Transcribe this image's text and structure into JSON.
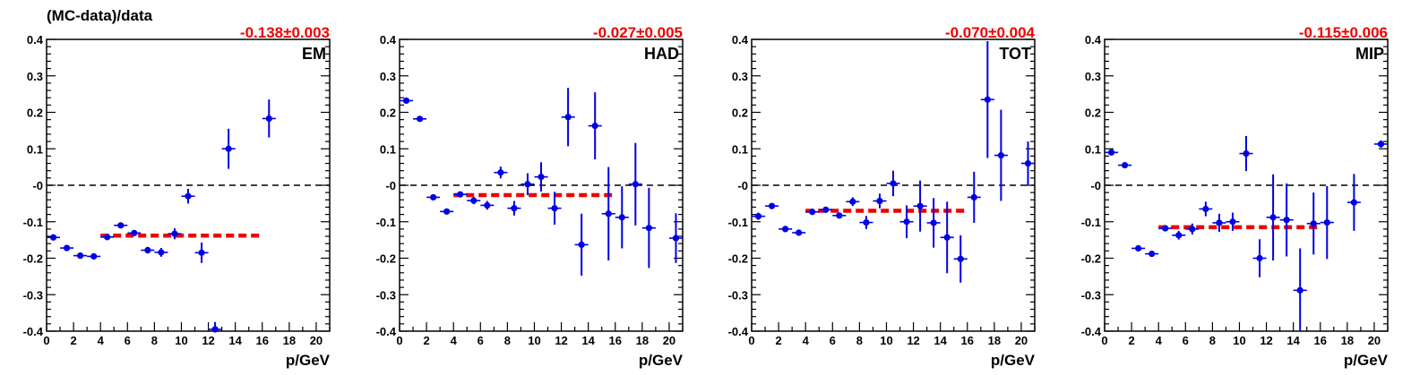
{
  "figure": {
    "ylabel": "(MC-data)/data"
  },
  "chart_data": [
    {
      "type": "scatter",
      "label": "EM",
      "fit_text": "-0.138±0.003",
      "fit_value": -0.138,
      "fit_range": [
        4,
        16
      ],
      "xlabel": "p/GeV",
      "xlim": [
        0,
        21
      ],
      "ylim": [
        -0.4,
        0.4
      ],
      "x_ticks": [
        "0",
        "2",
        "4",
        "6",
        "8",
        "10",
        "12",
        "14",
        "16",
        "18",
        "20"
      ],
      "y_ticks": [
        "-0.4",
        "-0.3",
        "-0.2",
        "-0.1",
        "-0",
        "0.1",
        "0.2",
        "0.3",
        "0.4"
      ],
      "points": [
        {
          "x": 0.5,
          "y": -0.143,
          "err": 0.005
        },
        {
          "x": 1.5,
          "y": -0.172,
          "err": 0.005
        },
        {
          "x": 2.5,
          "y": -0.193,
          "err": 0.004
        },
        {
          "x": 3.5,
          "y": -0.195,
          "err": 0.004
        },
        {
          "x": 4.5,
          "y": -0.142,
          "err": 0.006
        },
        {
          "x": 5.5,
          "y": -0.11,
          "err": 0.006
        },
        {
          "x": 6.5,
          "y": -0.131,
          "err": 0.008
        },
        {
          "x": 7.5,
          "y": -0.178,
          "err": 0.009
        },
        {
          "x": 8.5,
          "y": -0.184,
          "err": 0.012
        },
        {
          "x": 9.5,
          "y": -0.133,
          "err": 0.015
        },
        {
          "x": 10.5,
          "y": -0.03,
          "err": 0.02
        },
        {
          "x": 11.5,
          "y": -0.185,
          "err": 0.028
        },
        {
          "x": 12.5,
          "y": -0.395,
          "err": 0.02
        },
        {
          "x": 13.5,
          "y": 0.1,
          "err": 0.055
        },
        {
          "x": 16.5,
          "y": 0.183,
          "err": 0.052
        }
      ]
    },
    {
      "type": "scatter",
      "label": "HAD",
      "fit_text": "-0.027±0.005",
      "fit_value": -0.027,
      "fit_range": [
        4,
        16
      ],
      "xlabel": "p/GeV",
      "xlim": [
        0,
        21
      ],
      "ylim": [
        -0.4,
        0.4
      ],
      "x_ticks": [
        "0",
        "2",
        "4",
        "6",
        "8",
        "10",
        "12",
        "14",
        "16",
        "18",
        "20"
      ],
      "y_ticks": [
        "-0.4",
        "-0.3",
        "-0.2",
        "-0.1",
        "-0",
        "0.1",
        "0.2",
        "0.3",
        "0.4"
      ],
      "points": [
        {
          "x": 0.5,
          "y": 0.232,
          "err": 0.004
        },
        {
          "x": 1.5,
          "y": 0.182,
          "err": 0.004
        },
        {
          "x": 2.5,
          "y": -0.033,
          "err": 0.004
        },
        {
          "x": 3.5,
          "y": -0.072,
          "err": 0.004
        },
        {
          "x": 4.5,
          "y": -0.025,
          "err": 0.006
        },
        {
          "x": 5.5,
          "y": -0.042,
          "err": 0.01
        },
        {
          "x": 6.5,
          "y": -0.055,
          "err": 0.012
        },
        {
          "x": 7.5,
          "y": 0.035,
          "err": 0.016
        },
        {
          "x": 8.5,
          "y": -0.063,
          "err": 0.02
        },
        {
          "x": 9.5,
          "y": 0.003,
          "err": 0.03
        },
        {
          "x": 10.5,
          "y": 0.023,
          "err": 0.04
        },
        {
          "x": 11.5,
          "y": -0.063,
          "err": 0.045
        },
        {
          "x": 12.5,
          "y": 0.187,
          "err": 0.08
        },
        {
          "x": 13.5,
          "y": -0.163,
          "err": 0.085
        },
        {
          "x": 14.5,
          "y": 0.163,
          "err": 0.092
        },
        {
          "x": 15.5,
          "y": -0.078,
          "err": 0.128
        },
        {
          "x": 16.5,
          "y": -0.088,
          "err": 0.085
        },
        {
          "x": 17.5,
          "y": 0.003,
          "err": 0.113
        },
        {
          "x": 18.5,
          "y": -0.117,
          "err": 0.11
        },
        {
          "x": 20.5,
          "y": -0.145,
          "err": 0.068
        }
      ]
    },
    {
      "type": "scatter",
      "label": "TOT",
      "fit_text": "-0.070±0.004",
      "fit_value": -0.07,
      "fit_range": [
        4,
        16
      ],
      "xlabel": "p/GeV",
      "xlim": [
        0,
        21
      ],
      "ylim": [
        -0.4,
        0.4
      ],
      "x_ticks": [
        "0",
        "2",
        "4",
        "6",
        "8",
        "10",
        "12",
        "14",
        "16",
        "18",
        "20"
      ],
      "y_ticks": [
        "-0.4",
        "-0.3",
        "-0.2",
        "-0.1",
        "-0",
        "0.1",
        "0.2",
        "0.3",
        "0.4"
      ],
      "points": [
        {
          "x": 0.5,
          "y": -0.085,
          "err": 0.01
        },
        {
          "x": 1.5,
          "y": -0.057,
          "err": 0.005
        },
        {
          "x": 2.5,
          "y": -0.12,
          "err": 0.004
        },
        {
          "x": 3.5,
          "y": -0.13,
          "err": 0.004
        },
        {
          "x": 4.5,
          "y": -0.073,
          "err": 0.005
        },
        {
          "x": 5.5,
          "y": -0.067,
          "err": 0.006
        },
        {
          "x": 6.5,
          "y": -0.083,
          "err": 0.008
        },
        {
          "x": 7.5,
          "y": -0.045,
          "err": 0.012
        },
        {
          "x": 8.5,
          "y": -0.102,
          "err": 0.018
        },
        {
          "x": 9.5,
          "y": -0.043,
          "err": 0.02
        },
        {
          "x": 10.5,
          "y": 0.005,
          "err": 0.035
        },
        {
          "x": 11.5,
          "y": -0.1,
          "err": 0.045
        },
        {
          "x": 12.5,
          "y": -0.057,
          "err": 0.07
        },
        {
          "x": 13.5,
          "y": -0.103,
          "err": 0.068
        },
        {
          "x": 14.5,
          "y": -0.143,
          "err": 0.098
        },
        {
          "x": 15.5,
          "y": -0.202,
          "err": 0.065
        },
        {
          "x": 16.5,
          "y": -0.033,
          "err": 0.07
        },
        {
          "x": 17.5,
          "y": 0.235,
          "err": 0.16
        },
        {
          "x": 18.5,
          "y": 0.082,
          "err": 0.125
        },
        {
          "x": 20.5,
          "y": 0.06,
          "err": 0.06
        }
      ]
    },
    {
      "type": "scatter",
      "label": "MIP",
      "fit_text": "-0.115±0.006",
      "fit_value": -0.115,
      "fit_range": [
        4,
        16
      ],
      "xlabel": "p/GeV",
      "xlim": [
        0,
        21
      ],
      "ylim": [
        -0.4,
        0.4
      ],
      "x_ticks": [
        "0",
        "2",
        "4",
        "6",
        "8",
        "10",
        "12",
        "14",
        "16",
        "18",
        "20"
      ],
      "y_ticks": [
        "-0.4",
        "-0.3",
        "-0.2",
        "-0.1",
        "-0",
        "0.1",
        "0.2",
        "0.3",
        "0.4"
      ],
      "points": [
        {
          "x": 0.5,
          "y": 0.09,
          "err": 0.008
        },
        {
          "x": 1.5,
          "y": 0.055,
          "err": 0.005
        },
        {
          "x": 2.5,
          "y": -0.173,
          "err": 0.005
        },
        {
          "x": 3.5,
          "y": -0.188,
          "err": 0.005
        },
        {
          "x": 4.5,
          "y": -0.118,
          "err": 0.008
        },
        {
          "x": 5.5,
          "y": -0.137,
          "err": 0.012
        },
        {
          "x": 6.5,
          "y": -0.12,
          "err": 0.015
        },
        {
          "x": 7.5,
          "y": -0.065,
          "err": 0.02
        },
        {
          "x": 8.5,
          "y": -0.103,
          "err": 0.025
        },
        {
          "x": 9.5,
          "y": -0.1,
          "err": 0.025
        },
        {
          "x": 10.5,
          "y": 0.087,
          "err": 0.048
        },
        {
          "x": 11.5,
          "y": -0.2,
          "err": 0.052
        },
        {
          "x": 12.5,
          "y": -0.088,
          "err": 0.118
        },
        {
          "x": 13.5,
          "y": -0.095,
          "err": 0.1
        },
        {
          "x": 14.5,
          "y": -0.288,
          "err": 0.115
        },
        {
          "x": 15.5,
          "y": -0.105,
          "err": 0.085
        },
        {
          "x": 16.5,
          "y": -0.102,
          "err": 0.1
        },
        {
          "x": 18.5,
          "y": -0.047,
          "err": 0.078
        },
        {
          "x": 20.5,
          "y": 0.113,
          "err": 0.01
        }
      ]
    }
  ]
}
